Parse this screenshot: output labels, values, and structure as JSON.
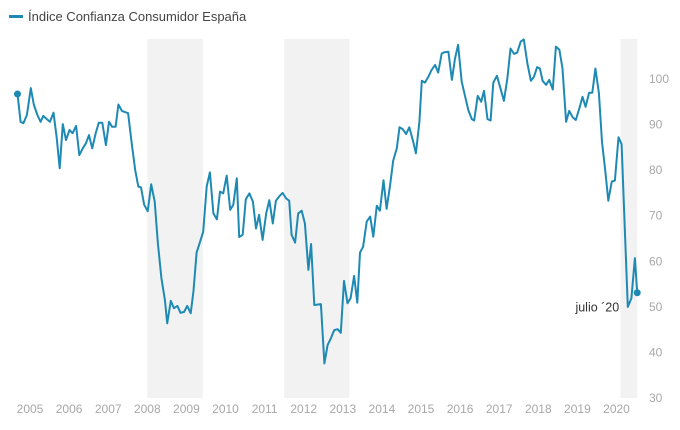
{
  "chart_data": {
    "type": "line",
    "title": "",
    "legend": {
      "position": "top-left",
      "entries": [
        "Índice Confianza Consumidor España"
      ]
    },
    "xlabel": "",
    "ylabel": "",
    "x_ticks": [
      "2005",
      "2006",
      "2007",
      "2008",
      "2009",
      "2010",
      "2011",
      "2012",
      "2013",
      "2014",
      "2015",
      "2016",
      "2017",
      "2018",
      "2019",
      "2020"
    ],
    "y_ticks": [
      "30",
      "40",
      "50",
      "60",
      "70",
      "80",
      "90",
      "100"
    ],
    "ylim": [
      30,
      110
    ],
    "xlim": [
      2004.6,
      2020.6
    ],
    "y_axis_side": "right",
    "grid": false,
    "color": "#1e8ab4",
    "shade_color": "#f2f2f2",
    "shaded_periods": [
      [
        2008.0,
        2009.42
      ],
      [
        2011.5,
        2013.17
      ],
      [
        2020.1,
        2020.53
      ]
    ],
    "annotation": {
      "text": "julio ´20",
      "x": 2020.53,
      "y": 53.1
    },
    "series": [
      {
        "name": "Índice Confianza Consumidor España",
        "points": [
          [
            2004.68,
            96.7
          ],
          [
            2004.76,
            90.6
          ],
          [
            2004.83,
            90.3
          ],
          [
            2004.92,
            92.1
          ],
          [
            2005.02,
            98.0
          ],
          [
            2005.1,
            94.3
          ],
          [
            2005.19,
            92.1
          ],
          [
            2005.27,
            90.6
          ],
          [
            2005.34,
            91.9
          ],
          [
            2005.43,
            91.2
          ],
          [
            2005.51,
            90.6
          ],
          [
            2005.6,
            92.6
          ],
          [
            2005.68,
            87.3
          ],
          [
            2005.76,
            80.4
          ],
          [
            2005.84,
            90.1
          ],
          [
            2005.92,
            86.6
          ],
          [
            2006.01,
            88.8
          ],
          [
            2006.09,
            88.1
          ],
          [
            2006.18,
            89.7
          ],
          [
            2006.26,
            83.3
          ],
          [
            2006.35,
            84.8
          ],
          [
            2006.43,
            85.9
          ],
          [
            2006.51,
            87.7
          ],
          [
            2006.59,
            84.8
          ],
          [
            2006.68,
            88.1
          ],
          [
            2006.76,
            90.4
          ],
          [
            2006.85,
            90.4
          ],
          [
            2006.94,
            85.5
          ],
          [
            2007.02,
            90.6
          ],
          [
            2007.1,
            89.5
          ],
          [
            2007.19,
            89.5
          ],
          [
            2007.26,
            94.4
          ],
          [
            2007.35,
            93.0
          ],
          [
            2007.51,
            92.5
          ],
          [
            2007.6,
            85.9
          ],
          [
            2007.69,
            80.0
          ],
          [
            2007.77,
            76.4
          ],
          [
            2007.84,
            76.2
          ],
          [
            2007.92,
            72.4
          ],
          [
            2008.01,
            71.0
          ],
          [
            2008.1,
            76.9
          ],
          [
            2008.19,
            73.1
          ],
          [
            2008.27,
            63.9
          ],
          [
            2008.36,
            56.3
          ],
          [
            2008.45,
            51.5
          ],
          [
            2008.51,
            46.4
          ],
          [
            2008.6,
            51.3
          ],
          [
            2008.68,
            49.7
          ],
          [
            2008.77,
            50.2
          ],
          [
            2008.85,
            48.7
          ],
          [
            2008.94,
            48.9
          ],
          [
            2009.02,
            50.2
          ],
          [
            2009.11,
            48.6
          ],
          [
            2009.18,
            53.3
          ],
          [
            2009.26,
            61.9
          ],
          [
            2009.35,
            64.3
          ],
          [
            2009.43,
            66.5
          ],
          [
            2009.52,
            76.4
          ],
          [
            2009.6,
            79.5
          ],
          [
            2009.69,
            70.5
          ],
          [
            2009.78,
            69.2
          ],
          [
            2009.86,
            75.3
          ],
          [
            2009.94,
            74.9
          ],
          [
            2010.03,
            78.8
          ],
          [
            2010.12,
            71.3
          ],
          [
            2010.2,
            72.4
          ],
          [
            2010.29,
            78.2
          ],
          [
            2010.35,
            65.3
          ],
          [
            2010.44,
            65.8
          ],
          [
            2010.52,
            73.6
          ],
          [
            2010.61,
            74.9
          ],
          [
            2010.7,
            73.1
          ],
          [
            2010.78,
            67.2
          ],
          [
            2010.86,
            70.2
          ],
          [
            2010.95,
            64.7
          ],
          [
            2011.04,
            70.5
          ],
          [
            2011.12,
            73.4
          ],
          [
            2011.21,
            68.3
          ],
          [
            2011.29,
            73.3
          ],
          [
            2011.38,
            74.3
          ],
          [
            2011.46,
            75.0
          ],
          [
            2011.55,
            73.8
          ],
          [
            2011.63,
            73.3
          ],
          [
            2011.69,
            65.8
          ],
          [
            2011.78,
            64.1
          ],
          [
            2011.86,
            70.5
          ],
          [
            2011.95,
            71.1
          ],
          [
            2012.03,
            68.3
          ],
          [
            2012.12,
            58.1
          ],
          [
            2012.19,
            63.8
          ],
          [
            2012.27,
            50.4
          ],
          [
            2012.44,
            50.6
          ],
          [
            2012.53,
            37.6
          ],
          [
            2012.61,
            41.6
          ],
          [
            2012.7,
            43.2
          ],
          [
            2012.78,
            44.9
          ],
          [
            2012.87,
            45.1
          ],
          [
            2012.95,
            44.3
          ],
          [
            2013.03,
            55.7
          ],
          [
            2013.12,
            50.8
          ],
          [
            2013.2,
            51.9
          ],
          [
            2013.29,
            56.8
          ],
          [
            2013.37,
            50.9
          ],
          [
            2013.44,
            61.9
          ],
          [
            2013.52,
            63.2
          ],
          [
            2013.61,
            68.7
          ],
          [
            2013.7,
            69.8
          ],
          [
            2013.78,
            65.4
          ],
          [
            2013.87,
            72.2
          ],
          [
            2013.95,
            71.1
          ],
          [
            2014.04,
            77.8
          ],
          [
            2014.12,
            71.5
          ],
          [
            2014.21,
            76.7
          ],
          [
            2014.29,
            82.1
          ],
          [
            2014.38,
            84.8
          ],
          [
            2014.45,
            89.4
          ],
          [
            2014.53,
            89.0
          ],
          [
            2014.62,
            87.9
          ],
          [
            2014.7,
            89.4
          ],
          [
            2014.79,
            86.6
          ],
          [
            2014.87,
            83.7
          ],
          [
            2014.96,
            90.6
          ],
          [
            2015.02,
            99.6
          ],
          [
            2015.1,
            99.2
          ],
          [
            2015.19,
            100.5
          ],
          [
            2015.27,
            102.0
          ],
          [
            2015.36,
            103.1
          ],
          [
            2015.44,
            101.4
          ],
          [
            2015.53,
            105.6
          ],
          [
            2015.61,
            105.9
          ],
          [
            2015.7,
            106.0
          ],
          [
            2015.79,
            99.8
          ],
          [
            2015.87,
            104.5
          ],
          [
            2015.95,
            107.5
          ],
          [
            2016.04,
            99.4
          ],
          [
            2016.13,
            96.1
          ],
          [
            2016.21,
            93.2
          ],
          [
            2016.3,
            91.2
          ],
          [
            2016.36,
            90.9
          ],
          [
            2016.45,
            96.3
          ],
          [
            2016.54,
            95.0
          ],
          [
            2016.61,
            97.4
          ],
          [
            2016.7,
            91.2
          ],
          [
            2016.78,
            90.9
          ],
          [
            2016.85,
            99.2
          ],
          [
            2016.94,
            100.7
          ],
          [
            2017.02,
            98.3
          ],
          [
            2017.12,
            95.2
          ],
          [
            2017.21,
            100.2
          ],
          [
            2017.29,
            106.7
          ],
          [
            2017.38,
            105.5
          ],
          [
            2017.46,
            105.8
          ],
          [
            2017.55,
            108.2
          ],
          [
            2017.63,
            108.7
          ],
          [
            2017.72,
            103.4
          ],
          [
            2017.81,
            99.6
          ],
          [
            2017.89,
            100.5
          ],
          [
            2017.97,
            102.6
          ],
          [
            2018.04,
            102.3
          ],
          [
            2018.11,
            99.6
          ],
          [
            2018.2,
            98.7
          ],
          [
            2018.28,
            99.8
          ],
          [
            2018.37,
            97.7
          ],
          [
            2018.45,
            107.1
          ],
          [
            2018.54,
            106.4
          ],
          [
            2018.62,
            102.3
          ],
          [
            2018.71,
            90.6
          ],
          [
            2018.79,
            93.0
          ],
          [
            2018.88,
            91.6
          ],
          [
            2018.96,
            91.0
          ],
          [
            2019.05,
            93.6
          ],
          [
            2019.13,
            96.1
          ],
          [
            2019.21,
            93.9
          ],
          [
            2019.3,
            97.0
          ],
          [
            2019.38,
            97.0
          ],
          [
            2019.46,
            102.3
          ],
          [
            2019.55,
            96.9
          ],
          [
            2019.63,
            86.2
          ],
          [
            2019.71,
            80.0
          ],
          [
            2019.79,
            73.3
          ],
          [
            2019.88,
            77.5
          ],
          [
            2019.96,
            77.7
          ],
          [
            2020.05,
            87.2
          ],
          [
            2020.13,
            85.7
          ],
          [
            2020.22,
            65.4
          ],
          [
            2020.29,
            50.0
          ],
          [
            2020.38,
            51.9
          ],
          [
            2020.47,
            60.7
          ],
          [
            2020.53,
            53.1
          ]
        ]
      }
    ]
  }
}
